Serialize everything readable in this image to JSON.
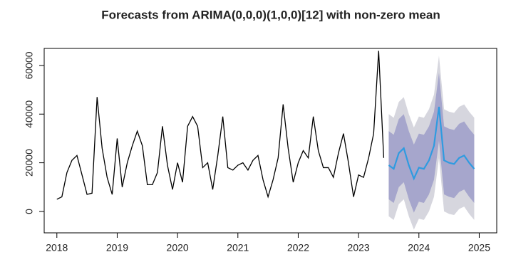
{
  "chart_data": {
    "type": "forecast",
    "title": "Forecasts from ARIMA(0,0,0)(1,0,0)[12] with non-zero mean",
    "series": [
      {
        "color": "#000000",
        "x": [
          2018,
          2018.083,
          2018.167,
          2018.25,
          2018.333,
          2018.417,
          2018.5,
          2018.583,
          2018.667,
          2018.75,
          2018.833,
          2018.917,
          2019,
          2019.083,
          2019.167,
          2019.25,
          2019.333,
          2019.417,
          2019.5,
          2019.583,
          2019.667,
          2019.75,
          2019.833,
          2019.917,
          2020,
          2020.083,
          2020.167,
          2020.25,
          2020.333,
          2020.417,
          2020.5,
          2020.583,
          2020.667,
          2020.75,
          2020.833,
          2020.917,
          2021,
          2021.083,
          2021.167,
          2021.25,
          2021.333,
          2021.417,
          2021.5,
          2021.583,
          2021.667,
          2021.75,
          2021.833,
          2021.917,
          2022,
          2022.083,
          2022.167,
          2022.25,
          2022.333,
          2022.417,
          2022.5,
          2022.583,
          2022.667,
          2022.75,
          2022.833,
          2022.917,
          2023,
          2023.083,
          2023.167,
          2023.25,
          2023.333,
          2023.417
        ],
        "values": [
          5000,
          6000,
          16000,
          21000,
          23000,
          15000,
          7000,
          7500,
          47000,
          26000,
          14000,
          7000,
          30000,
          10000,
          20000,
          27000,
          33000,
          27000,
          11000,
          11000,
          16000,
          35000,
          19000,
          9000,
          20000,
          12000,
          35000,
          39000,
          35000,
          18000,
          20000,
          9000,
          23000,
          39000,
          18000,
          17000,
          19000,
          20000,
          17000,
          21000,
          23000,
          13000,
          6000,
          13000,
          22000,
          44000,
          26000,
          12000,
          20000,
          25000,
          22000,
          39000,
          25000,
          18000,
          18000,
          14000,
          24000,
          32000,
          20000,
          6000,
          15000,
          14000,
          22000,
          32000,
          66000,
          22000
        ]
      },
      {
        "color": "#2f9be0",
        "x": [
          2023.5,
          2023.583,
          2023.667,
          2023.75,
          2023.833,
          2023.917,
          2024,
          2024.083,
          2024.167,
          2024.25,
          2024.333,
          2024.417,
          2024.5,
          2024.583,
          2024.667,
          2024.75,
          2024.833,
          2024.917
        ],
        "values": [
          19000,
          17500,
          24000,
          26000,
          19000,
          13500,
          18000,
          17500,
          21000,
          27000,
          43000,
          21000,
          20000,
          19500,
          22000,
          23000,
          20000,
          17500
        ]
      }
    ],
    "bands": [
      {
        "color": "#d6d6de",
        "lower": [
          -2000,
          -3500,
          3000,
          5000,
          -2000,
          -7500,
          -3000,
          -3500,
          0,
          6000,
          22000,
          0,
          -1000,
          -1500,
          1000,
          2000,
          -1000,
          -3500
        ],
        "upper": [
          40000,
          38500,
          45000,
          47000,
          40000,
          34500,
          39000,
          38500,
          42000,
          48000,
          64000,
          42000,
          41000,
          40500,
          43000,
          44000,
          41000,
          38500
        ]
      },
      {
        "color": "#a6a6cc",
        "lower": [
          5000,
          3500,
          10000,
          12000,
          5000,
          -500,
          4000,
          3500,
          7000,
          13000,
          29000,
          7000,
          6000,
          5500,
          8000,
          9000,
          6000,
          3500
        ],
        "upper": [
          33000,
          31500,
          38000,
          40000,
          33000,
          27500,
          32000,
          31500,
          35000,
          41000,
          57000,
          35000,
          34000,
          33500,
          36000,
          37000,
          34000,
          31500
        ]
      }
    ],
    "xlim": [
      2017.79,
      2025.29
    ],
    "ylim": [
      -8800,
      67000
    ],
    "xticks": [
      2018,
      2019,
      2020,
      2021,
      2022,
      2023,
      2024,
      2025
    ],
    "yticks": [
      0,
      20000,
      40000,
      60000
    ]
  }
}
